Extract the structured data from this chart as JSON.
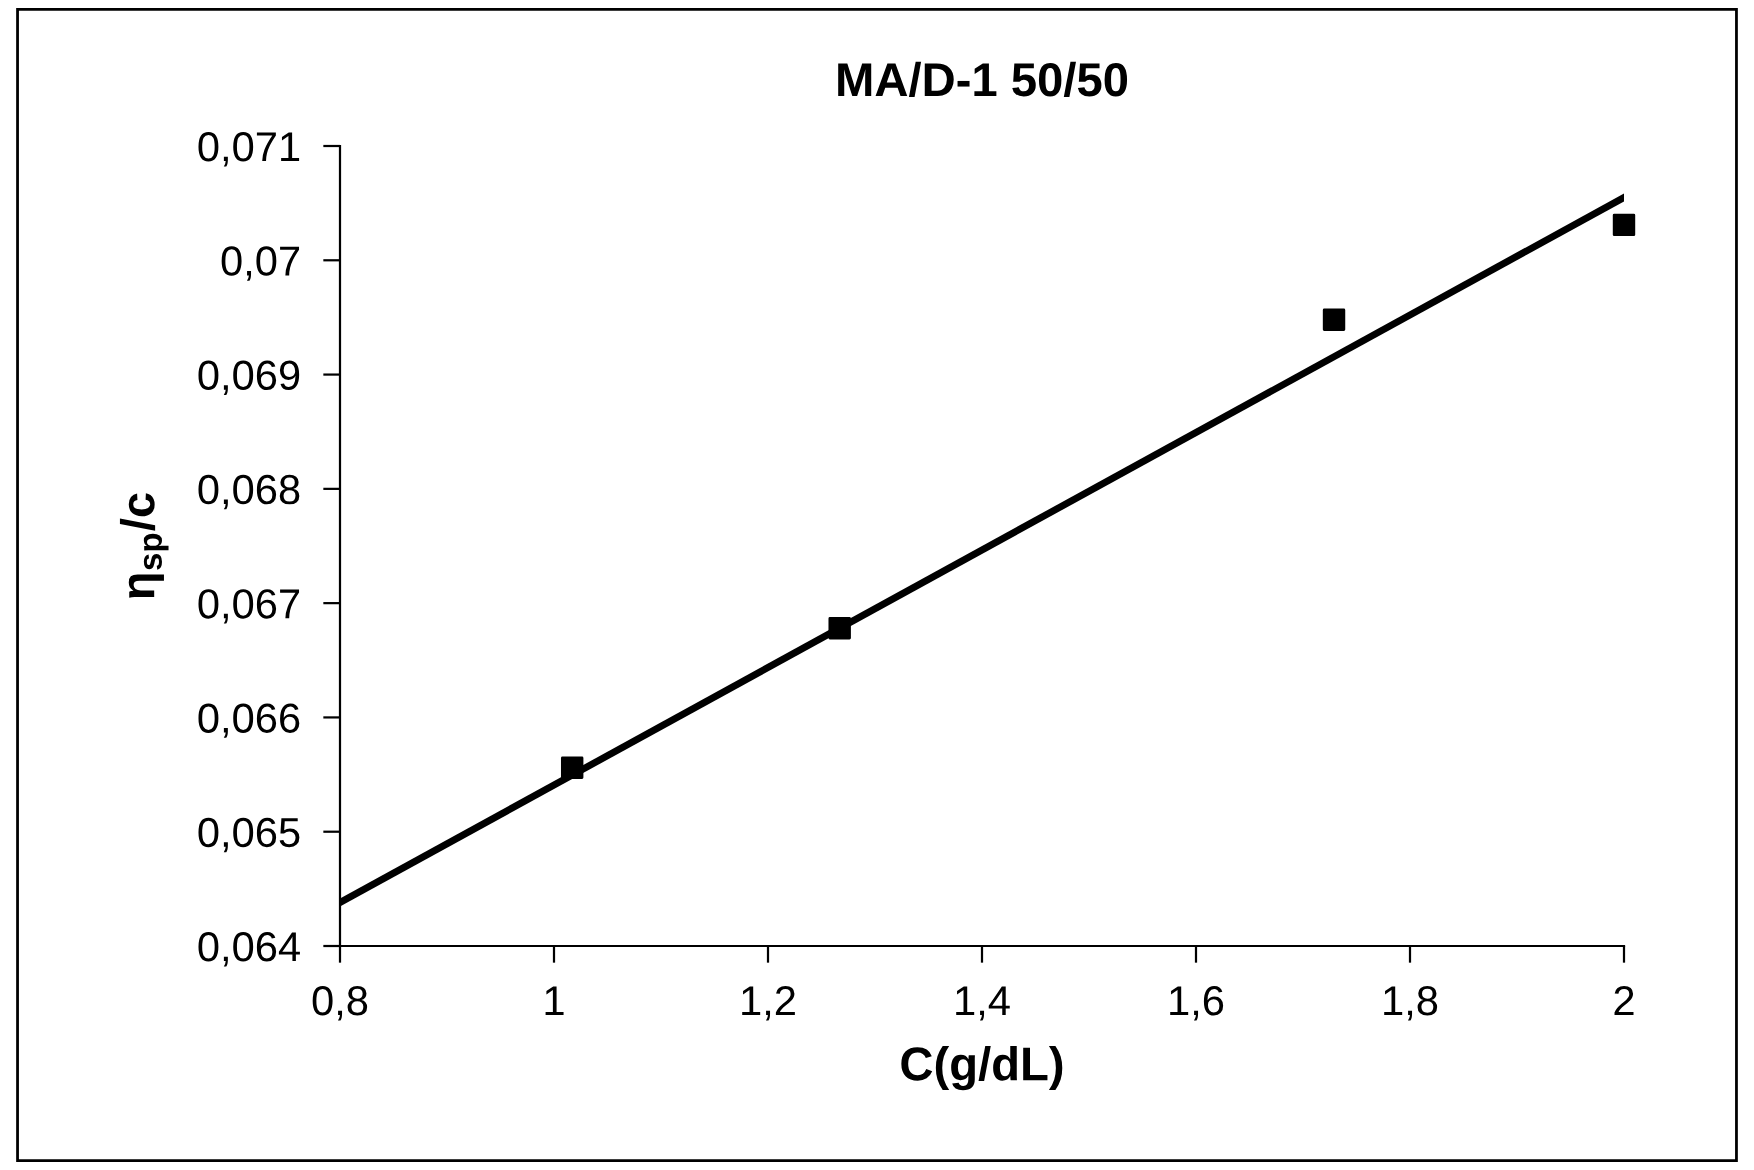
{
  "chart_data": {
    "type": "scatter",
    "title": "MA/D-1 50/50",
    "xlabel": "C(g/dL)",
    "ylabel": "η$_{sp}$/c",
    "x": [
      1.017,
      1.267,
      1.729,
      2.0
    ],
    "series": [
      {
        "color": "#000000",
        "marker": "square",
        "values": [
          0.06556,
          0.06678,
          0.06948,
          0.07031
        ]
      },
      {
        "type": "line",
        "color": "#000000",
        "marker": "none",
        "line_style": "solid",
        "x": [
          0.8,
          2.0
        ],
        "values": [
          0.06438,
          0.07055
        ]
      }
    ],
    "xlim": [
      0.8,
      2.0
    ],
    "ylim": [
      0.064,
      0.071
    ],
    "xticks": [
      {
        "value": 0.8,
        "label": "0,8"
      },
      1,
      {
        "value": 1.2,
        "label": "1,2"
      },
      {
        "value": 1.4,
        "label": "1,4"
      },
      {
        "value": 1.6,
        "label": "1,6"
      },
      {
        "value": 1.8,
        "label": "1,8"
      },
      2
    ],
    "yticks": [
      {
        "value": 0.064,
        "label": "0,064"
      },
      {
        "value": 0.065,
        "label": "0,065"
      },
      {
        "value": 0.066,
        "label": "0,066"
      },
      {
        "value": 0.067,
        "label": "0,067"
      },
      {
        "value": 0.068,
        "label": "0,068"
      },
      {
        "value": 0.069,
        "label": "0,069"
      },
      {
        "value": 0.07,
        "label": "0,07"
      },
      {
        "value": 0.071,
        "label": "0,071"
      }
    ],
    "grid": false,
    "legend": false
  }
}
